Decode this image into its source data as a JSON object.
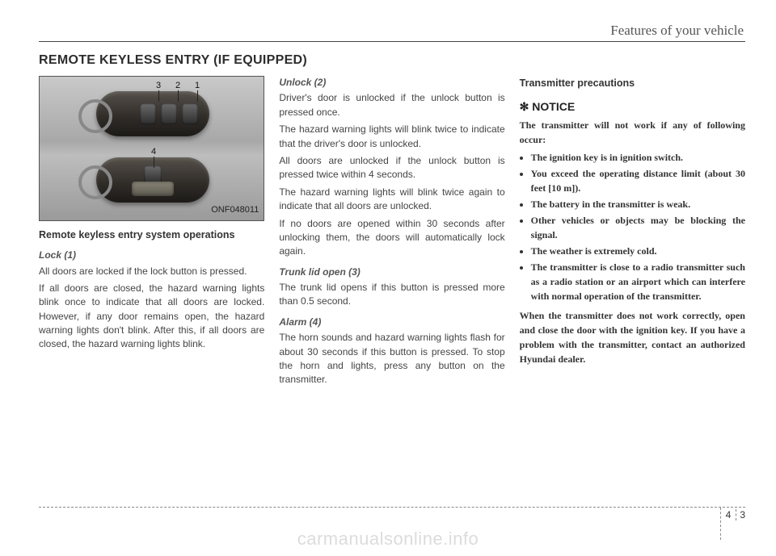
{
  "header": {
    "running_head": "Features of your vehicle",
    "section_title": "REMOTE KEYLESS ENTRY (IF EQUIPPED)"
  },
  "figure": {
    "image_code": "ONF048011",
    "callouts": {
      "c1": "1",
      "c2": "2",
      "c3": "3",
      "c4": "4"
    }
  },
  "col1": {
    "subhead": "Remote keyless entry system operations",
    "lock_title": "Lock (1)",
    "lock_p1": "All doors are locked if the lock button is pressed.",
    "lock_p2": "If all doors are closed, the hazard warning lights blink once to indicate that all doors are locked. However, if any door remains open, the hazard warning lights don't blink. After this, if all doors are closed, the hazard warning lights blink."
  },
  "col2": {
    "unlock_title": "Unlock (2)",
    "unlock_p1": "Driver's door is unlocked if the unlock button is pressed once.",
    "unlock_p2": "The hazard warning lights will blink twice to indicate that the driver's door is unlocked.",
    "unlock_p3": "All doors are unlocked if the unlock button is pressed twice within 4 seconds.",
    "unlock_p4": "The hazard warning lights will blink twice again to indicate that all doors are unlocked.",
    "unlock_p5": "If no doors are opened within 30 seconds after unlocking them, the doors will automatically lock again.",
    "trunk_title": "Trunk lid open (3)",
    "trunk_p1": "The trunk lid opens if this button is pressed more than 0.5 second.",
    "alarm_title": "Alarm (4)",
    "alarm_p1": "The horn sounds and hazard warning lights flash for about 30 seconds if this button is pressed. To stop the horn and lights, press any button on the transmitter."
  },
  "col3": {
    "precautions_title": "Transmitter precautions",
    "notice_label": "✻ NOTICE",
    "notice_intro": "The transmitter will not work if any of following occur:",
    "notice_items": [
      "The ignition key is in ignition switch.",
      "You exceed the operating distance limit (about 30 feet [10 m]).",
      "The battery in the transmitter is weak.",
      "Other vehicles or objects may be blocking the signal.",
      "The weather is extremely cold.",
      "The transmitter is close to a radio transmitter such as a radio station or an airport which can interfere with normal operation of the transmitter."
    ],
    "notice_footer": "When the transmitter does not work correctly, open and close the door with the ignition key. If you have a problem with the transmitter, contact an authorized Hyundai dealer."
  },
  "footer": {
    "chapter": "4",
    "page": "3",
    "watermark": "carmanualsonline.info"
  }
}
